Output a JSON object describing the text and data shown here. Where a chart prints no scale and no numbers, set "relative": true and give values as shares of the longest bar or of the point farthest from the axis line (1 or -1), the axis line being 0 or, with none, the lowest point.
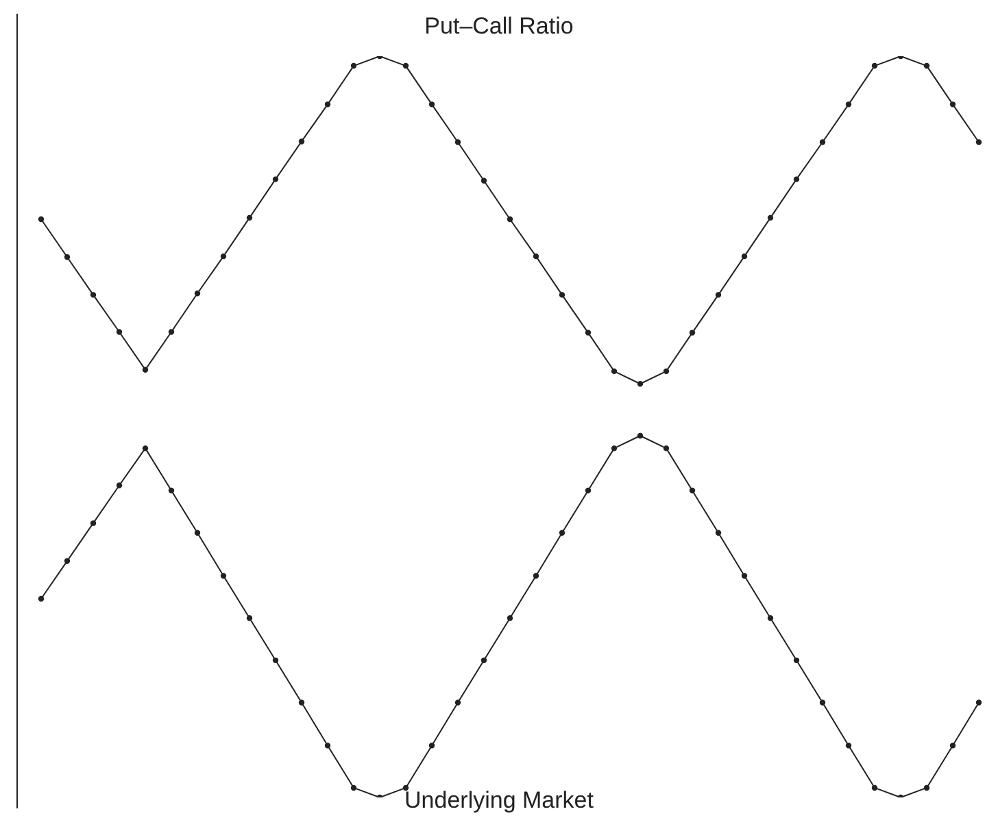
{
  "chart_data": {
    "type": "line",
    "relative": true,
    "marker": "circle",
    "line_style": "solid",
    "categories": [
      null,
      null,
      null,
      null,
      null,
      null,
      null,
      null,
      null,
      null,
      null,
      null,
      null,
      null,
      null,
      null,
      null,
      null,
      null,
      null,
      null,
      null,
      null,
      null,
      null,
      null,
      null,
      null,
      null,
      null,
      null,
      null,
      null,
      null,
      null,
      null,
      null
    ],
    "series": [
      {
        "name": "Put–Call Ratio",
        "color": "#222222",
        "values": [
          0.78,
          0.729,
          0.678,
          0.628,
          0.577,
          0.628,
          0.68,
          0.73,
          0.782,
          0.834,
          0.885,
          0.935,
          0.987,
          1,
          0.987,
          0.935,
          0.884,
          0.832,
          0.78,
          0.73,
          0.678,
          0.627,
          0.575,
          0.558,
          0.575,
          0.627,
          0.678,
          0.73,
          0.782,
          0.834,
          0.884,
          0.935,
          0.987,
          1,
          0.987,
          0.935,
          0.884
        ]
      },
      {
        "name": "Underlying Market",
        "color": "#222222",
        "values": [
          0.268,
          0.319,
          0.37,
          0.421,
          0.471,
          0.414,
          0.357,
          0.299,
          0.242,
          0.185,
          0.128,
          0.07,
          0.013,
          0,
          0.013,
          0.07,
          0.128,
          0.185,
          0.242,
          0.299,
          0.357,
          0.414,
          0.471,
          0.488,
          0.471,
          0.414,
          0.357,
          0.299,
          0.242,
          0.185,
          0.128,
          0.07,
          0.013,
          0,
          0.013,
          0.07,
          0.128
        ]
      }
    ]
  }
}
